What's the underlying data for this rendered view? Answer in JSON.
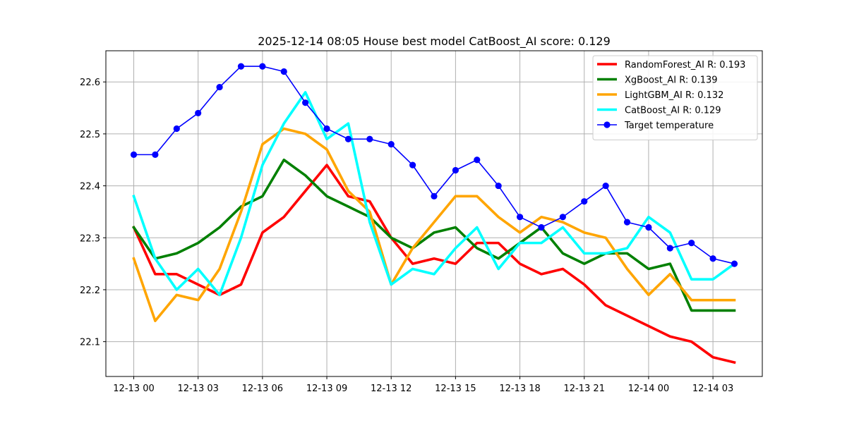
{
  "chart_data": {
    "type": "line",
    "title": "2025-12-14 08:05 House best model CatBoost_AI score: 0.129",
    "xlabel": "",
    "ylabel": "",
    "grid": true,
    "legend_position": "top-right",
    "x": [
      "12-13 00:00",
      "12-13 01:00",
      "12-13 02:00",
      "12-13 03:00",
      "12-13 04:00",
      "12-13 05:00",
      "12-13 06:00",
      "12-13 07:00",
      "12-13 08:00",
      "12-13 09:00",
      "12-13 10:00",
      "12-13 11:00",
      "12-13 12:00",
      "12-13 13:00",
      "12-13 14:00",
      "12-13 15:00",
      "12-13 16:00",
      "12-13 17:00",
      "12-13 18:00",
      "12-13 19:00",
      "12-13 20:00",
      "12-13 21:00",
      "12-13 22:00",
      "12-13 23:00",
      "12-14 00:00",
      "12-14 01:00",
      "12-14 02:00",
      "12-14 03:00",
      "12-14 04:00"
    ],
    "xlim": [
      -1.3,
      29.3
    ],
    "ylim": [
      22.033,
      22.66
    ],
    "x_ticks": [
      {
        "pos": 0,
        "label": "12-13 00"
      },
      {
        "pos": 3,
        "label": "12-13 03"
      },
      {
        "pos": 6,
        "label": "12-13 06"
      },
      {
        "pos": 9,
        "label": "12-13 09"
      },
      {
        "pos": 12,
        "label": "12-13 12"
      },
      {
        "pos": 15,
        "label": "12-13 15"
      },
      {
        "pos": 18,
        "label": "12-13 18"
      },
      {
        "pos": 21,
        "label": "12-13 21"
      },
      {
        "pos": 24,
        "label": "12-14 00"
      },
      {
        "pos": 27,
        "label": "12-14 03"
      }
    ],
    "y_ticks": [
      {
        "value": 22.1,
        "label": "22.1"
      },
      {
        "value": 22.2,
        "label": "22.2"
      },
      {
        "value": 22.3,
        "label": "22.3"
      },
      {
        "value": 22.4,
        "label": "22.4"
      },
      {
        "value": 22.5,
        "label": "22.5"
      },
      {
        "value": 22.6,
        "label": "22.6"
      }
    ],
    "series": [
      {
        "name": "RandomForest_AI R: 0.193",
        "color": "#ff0000",
        "markers": false,
        "values": [
          22.32,
          22.23,
          22.23,
          22.21,
          22.19,
          22.21,
          22.31,
          22.34,
          22.39,
          22.44,
          22.38,
          22.37,
          22.3,
          22.25,
          22.26,
          22.25,
          22.29,
          22.29,
          22.25,
          22.23,
          22.24,
          22.21,
          22.17,
          22.15,
          22.13,
          22.11,
          22.1,
          22.07,
          22.06
        ]
      },
      {
        "name": "XgBoost_AI R: 0.139",
        "color": "#008000",
        "markers": false,
        "values": [
          22.32,
          22.26,
          22.27,
          22.29,
          22.32,
          22.36,
          22.38,
          22.45,
          22.42,
          22.38,
          22.36,
          22.34,
          22.3,
          22.28,
          22.31,
          22.32,
          22.28,
          22.26,
          22.29,
          22.32,
          22.27,
          22.25,
          22.27,
          22.27,
          22.24,
          22.25,
          22.16,
          22.16,
          22.16
        ]
      },
      {
        "name": "LightGBM_AI R: 0.132",
        "color": "#ffa500",
        "markers": false,
        "values": [
          22.26,
          22.14,
          22.19,
          22.18,
          22.24,
          22.35,
          22.48,
          22.51,
          22.5,
          22.47,
          22.39,
          22.35,
          22.21,
          22.28,
          22.33,
          22.38,
          22.38,
          22.34,
          22.31,
          22.34,
          22.33,
          22.31,
          22.3,
          22.24,
          22.19,
          22.23,
          22.18,
          22.18,
          22.18
        ]
      },
      {
        "name": "CatBoost_AI R: 0.129",
        "color": "#00ffff",
        "markers": false,
        "values": [
          22.38,
          22.26,
          22.2,
          22.24,
          22.19,
          22.3,
          22.44,
          22.52,
          22.58,
          22.49,
          22.52,
          22.33,
          22.21,
          22.24,
          22.23,
          22.28,
          22.32,
          22.24,
          22.29,
          22.29,
          22.32,
          22.27,
          22.27,
          22.28,
          22.34,
          22.31,
          22.22,
          22.22,
          22.25
        ]
      },
      {
        "name": "Target temperature",
        "color": "#0000ff",
        "markers": true,
        "values": [
          22.46,
          22.46,
          22.51,
          22.54,
          22.59,
          22.63,
          22.63,
          22.62,
          22.56,
          22.51,
          22.49,
          22.49,
          22.48,
          22.44,
          22.38,
          22.43,
          22.45,
          22.4,
          22.34,
          22.32,
          22.34,
          22.37,
          22.4,
          22.33,
          22.32,
          22.28,
          22.29,
          22.26,
          22.25
        ]
      }
    ]
  }
}
